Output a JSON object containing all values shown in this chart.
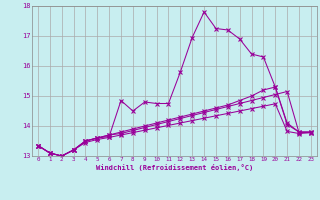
{
  "xlabel": "Windchill (Refroidissement éolien,°C)",
  "background_color": "#c8eef0",
  "grid_color": "#aaaaaa",
  "line_color": "#990099",
  "xlim": [
    -0.5,
    23.5
  ],
  "ylim": [
    13,
    18
  ],
  "ytick_values": [
    13,
    14,
    15,
    16,
    17,
    18
  ],
  "xtick_labels": [
    "0",
    "1",
    "2",
    "3",
    "4",
    "5",
    "6",
    "7",
    "8",
    "9",
    "10",
    "11",
    "12",
    "13",
    "14",
    "15",
    "16",
    "17",
    "18",
    "19",
    "20",
    "21",
    "22",
    "23"
  ],
  "ytick_labels": [
    "13",
    "14",
    "15",
    "16",
    "17",
    "18"
  ],
  "series": [
    [
      13.35,
      13.1,
      13.0,
      13.2,
      13.5,
      13.6,
      13.65,
      14.85,
      14.5,
      14.8,
      14.75,
      14.75,
      15.8,
      16.95,
      17.8,
      17.25,
      17.2,
      16.9,
      16.4,
      16.3,
      15.3,
      14.1,
      13.8,
      13.8
    ],
    [
      13.35,
      13.1,
      13.0,
      13.2,
      13.5,
      13.6,
      13.7,
      13.8,
      13.9,
      14.0,
      14.1,
      14.2,
      14.3,
      14.4,
      14.5,
      14.6,
      14.7,
      14.85,
      15.0,
      15.2,
      15.3,
      14.05,
      13.8,
      13.8
    ],
    [
      13.35,
      13.1,
      13.0,
      13.2,
      13.5,
      13.6,
      13.7,
      13.75,
      13.85,
      13.95,
      14.05,
      14.15,
      14.25,
      14.35,
      14.45,
      14.55,
      14.65,
      14.75,
      14.85,
      14.95,
      15.05,
      15.15,
      13.78,
      13.78
    ],
    [
      13.35,
      13.1,
      13.0,
      13.2,
      13.45,
      13.55,
      13.62,
      13.7,
      13.78,
      13.86,
      13.94,
      14.02,
      14.1,
      14.18,
      14.26,
      14.34,
      14.42,
      14.5,
      14.58,
      14.66,
      14.74,
      13.82,
      13.75,
      13.78
    ]
  ]
}
